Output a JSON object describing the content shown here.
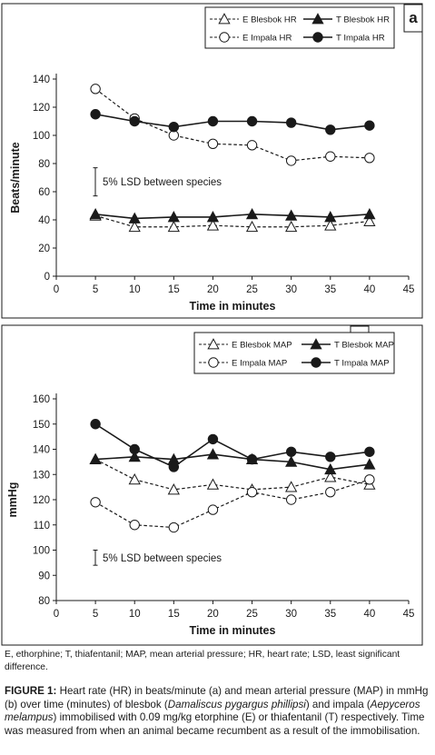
{
  "chart_data": [
    {
      "type": "line",
      "panel_label": "a",
      "xlabel": "Time in minutes",
      "ylabel": "Beats/minute",
      "xlim": [
        0,
        45
      ],
      "ylim": [
        0,
        140
      ],
      "xticks": [
        0,
        5,
        10,
        15,
        20,
        25,
        30,
        35,
        40,
        45
      ],
      "yticks": [
        0,
        20,
        40,
        60,
        80,
        100,
        120,
        140
      ],
      "grid": false,
      "legend_position": "top-right",
      "annotation": "5% LSD between species",
      "lsd_bar": [
        57,
        77
      ],
      "x": [
        5,
        10,
        15,
        20,
        25,
        30,
        35,
        40
      ],
      "series": [
        {
          "name": "E Blesbok HR",
          "marker": "open-triangle",
          "dash": true,
          "values": [
            43,
            35,
            35,
            36,
            35,
            35,
            36,
            39
          ]
        },
        {
          "name": "T Blesbok HR",
          "marker": "filled-triangle",
          "dash": false,
          "values": [
            44,
            41,
            42,
            42,
            44,
            43,
            42,
            44
          ]
        },
        {
          "name": "E Impala HR",
          "marker": "open-circle",
          "dash": true,
          "values": [
            133,
            112,
            100,
            94,
            93,
            82,
            85,
            84
          ]
        },
        {
          "name": "T Impala HR",
          "marker": "filled-circle",
          "dash": false,
          "values": [
            115,
            110,
            106,
            110,
            110,
            109,
            104,
            107
          ]
        }
      ]
    },
    {
      "type": "line",
      "panel_label": "b",
      "xlabel": "Time in minutes",
      "ylabel": "mmHg",
      "xlim": [
        0,
        45
      ],
      "ylim": [
        80,
        160
      ],
      "xticks": [
        0,
        5,
        10,
        15,
        20,
        25,
        30,
        35,
        40,
        45
      ],
      "yticks": [
        80,
        90,
        100,
        110,
        120,
        130,
        140,
        150,
        160
      ],
      "grid": false,
      "legend_position": "top-right",
      "annotation": "5% LSD between species",
      "lsd_bar": [
        94,
        100
      ],
      "x": [
        5,
        10,
        15,
        20,
        25,
        30,
        35,
        40
      ],
      "series": [
        {
          "name": "E Blesbok MAP",
          "marker": "open-triangle",
          "dash": true,
          "values": [
            136,
            128,
            124,
            126,
            124,
            125,
            129,
            126
          ]
        },
        {
          "name": "T Blesbok MAP",
          "marker": "filled-triangle",
          "dash": false,
          "values": [
            136,
            137,
            136,
            138,
            136,
            135,
            132,
            134
          ]
        },
        {
          "name": "E Impala MAP",
          "marker": "open-circle",
          "dash": true,
          "values": [
            119,
            110,
            109,
            116,
            123,
            120,
            123,
            128
          ]
        },
        {
          "name": "T Impala MAP",
          "marker": "filled-circle",
          "dash": false,
          "values": [
            150,
            140,
            133,
            144,
            136,
            139,
            137,
            139
          ]
        }
      ]
    }
  ],
  "abbreviations": "E, ethorphine; T, thiafentanil; MAP, mean arterial pressure; HR, heart rate; LSD, least significant difference.",
  "caption": {
    "label": "FIGURE 1:",
    "p1": " Heart rate (HR) in beats/minute (a) and mean arterial pressure (MAP) in mmHg (b) over time (minutes) of blesbok (",
    "sp1": "Damaliscus pygargus phillipsi",
    "p2": ") and impala (",
    "sp2": "Aepyceros melampus",
    "p3": ") immobilised with 0.09 mg/kg etorphine (E) or thiafentanil (T) respectively. Time was measured from when an animal became recumbent as a result of the immobilisation."
  }
}
